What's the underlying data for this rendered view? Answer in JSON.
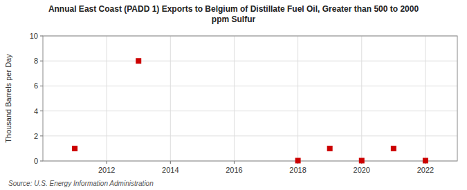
{
  "chart_data": {
    "type": "scatter",
    "title": "Annual East Coast (PADD 1) Exports to Belgium of Distillate Fuel Oil, Greater than 500 to 2000\nppm Sulfur",
    "ylabel": "Thousand Barrels per Day",
    "annotations": [
      "Source: U.S. Energy Information Administration"
    ],
    "x": [
      2011,
      2013,
      2018,
      2019,
      2020,
      2021,
      2022
    ],
    "values": [
      1.0,
      8.0,
      0.03,
      1.0,
      0.03,
      1.0,
      0.03
    ],
    "color": "#cc0000",
    "marker": "square",
    "xlim": [
      2010,
      2023
    ],
    "ylim": [
      0,
      10
    ],
    "xticks": [
      2012,
      2014,
      2016,
      2018,
      2020,
      2022
    ],
    "yticks": [
      0,
      2,
      4,
      6,
      8,
      10
    ],
    "grid": true
  }
}
